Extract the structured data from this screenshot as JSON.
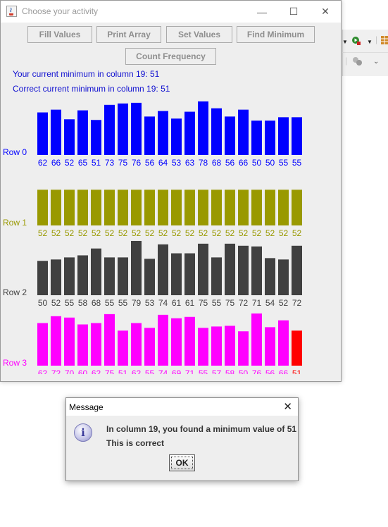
{
  "window": {
    "title": "Choose your activity",
    "controls": {
      "minimize": "—",
      "maximize": "☐",
      "close": "✕"
    }
  },
  "toolbar": {
    "fill_values": "Fill Values",
    "print_array": "Print Array",
    "set_values": "Set Values",
    "find_minimum": "Find Minimum",
    "count_frequency": "Count Frequency"
  },
  "messages": {
    "current_min": "Your current minimum in column 19: 51",
    "correct_min": "Correct current minimum in column 19: 51"
  },
  "chart_data": {
    "type": "bar",
    "highlight_column": 19,
    "highlight_color": "#ff0000",
    "rows": [
      {
        "label": "Row 0",
        "color": "#0000ff",
        "values": [
          62,
          66,
          52,
          65,
          51,
          73,
          75,
          76,
          56,
          64,
          53,
          63,
          78,
          68,
          56,
          66,
          50,
          50,
          55,
          55
        ]
      },
      {
        "label": "Row 1",
        "color": "#999900",
        "values": [
          52,
          52,
          52,
          52,
          52,
          52,
          52,
          52,
          52,
          52,
          52,
          52,
          52,
          52,
          52,
          52,
          52,
          52,
          52,
          52
        ]
      },
      {
        "label": "Row 2",
        "color": "#404040",
        "values": [
          50,
          52,
          55,
          58,
          68,
          55,
          55,
          79,
          53,
          74,
          61,
          61,
          75,
          55,
          75,
          72,
          71,
          54,
          52,
          72
        ]
      },
      {
        "label": "Row 3",
        "color": "#ff00ff",
        "values": [
          62,
          72,
          70,
          60,
          62,
          75,
          51,
          62,
          55,
          74,
          69,
          71,
          55,
          57,
          58,
          50,
          76,
          56,
          66,
          51
        ]
      }
    ]
  },
  "dialog": {
    "title": "Message",
    "close": "✕",
    "icon": "info-icon",
    "icon_glyph": "i",
    "line1": "In column 19, you found a minimum value of 51",
    "line2": "This is correct",
    "ok": "OK"
  },
  "background_app": {
    "run_icon": "run-icon",
    "debug_icon": "debug-icon"
  }
}
